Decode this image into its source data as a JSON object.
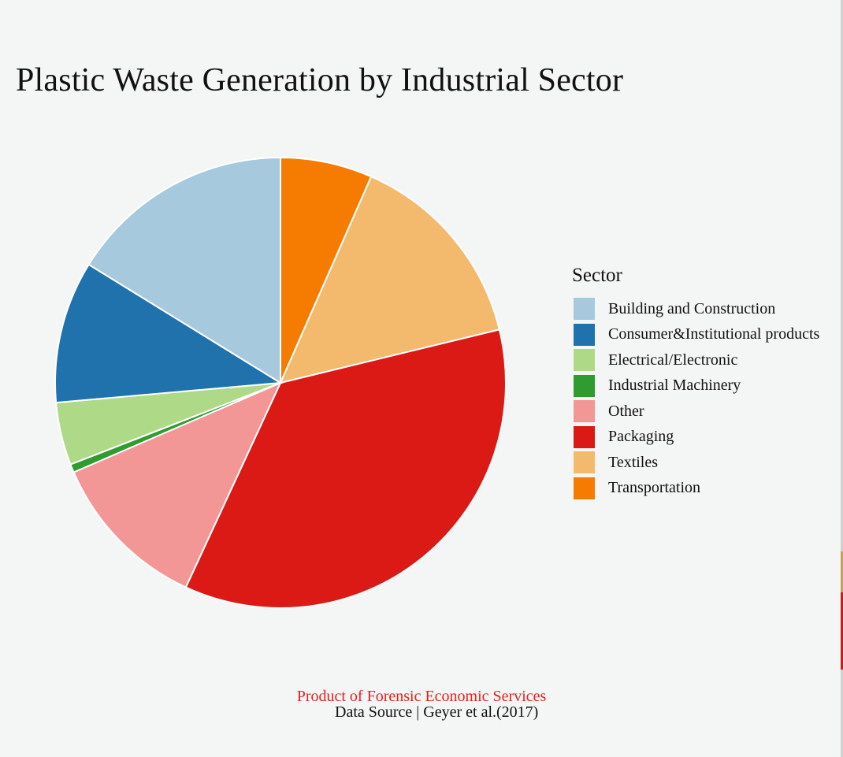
{
  "title": "Plastic Waste Generation by Industrial Sector",
  "legend": {
    "title": "Sector",
    "items": [
      {
        "label": "Building and Construction",
        "color": "#a6c9de"
      },
      {
        "label": "Consumer&Institutional products",
        "color": "#1f72ab"
      },
      {
        "label": "Electrical/Electronic",
        "color": "#aed987"
      },
      {
        "label": "Industrial Machinery",
        "color": "#2e9c2e"
      },
      {
        "label": "Other",
        "color": "#f29696"
      },
      {
        "label": "Packaging",
        "color": "#db1a16"
      },
      {
        "label": "Textiles",
        "color": "#f3b96c"
      },
      {
        "label": "Transportation",
        "color": "#f57c00"
      }
    ]
  },
  "footer": {
    "credit": "Product of Forensic Economic Services",
    "source": "Data Source | Geyer et al.(2017)"
  },
  "chart_data": {
    "type": "pie",
    "title": "Plastic Waste Generation by Industrial Sector",
    "legend_title": "Sector",
    "legend_position": "right",
    "start_angle_deg": 0,
    "direction": "clockwise",
    "slice_order": [
      "Transportation",
      "Textiles",
      "Packaging",
      "Other",
      "Industrial Machinery",
      "Electrical/Electronic",
      "Consumer&Institutional products",
      "Building and Construction"
    ],
    "categories": [
      "Building and Construction",
      "Consumer&Institutional products",
      "Electrical/Electronic",
      "Industrial Machinery",
      "Other",
      "Packaging",
      "Textiles",
      "Transportation"
    ],
    "values_percent": [
      16.2,
      10.2,
      4.5,
      0.6,
      11.6,
      35.7,
      14.6,
      6.6
    ],
    "colors": [
      "#a6c9de",
      "#1f72ab",
      "#aed987",
      "#2e9c2e",
      "#f29696",
      "#db1a16",
      "#f3b96c",
      "#f57c00"
    ],
    "caption": "Product of Forensic Economic Services",
    "source": "Data Source | Geyer et al.(2017)"
  }
}
